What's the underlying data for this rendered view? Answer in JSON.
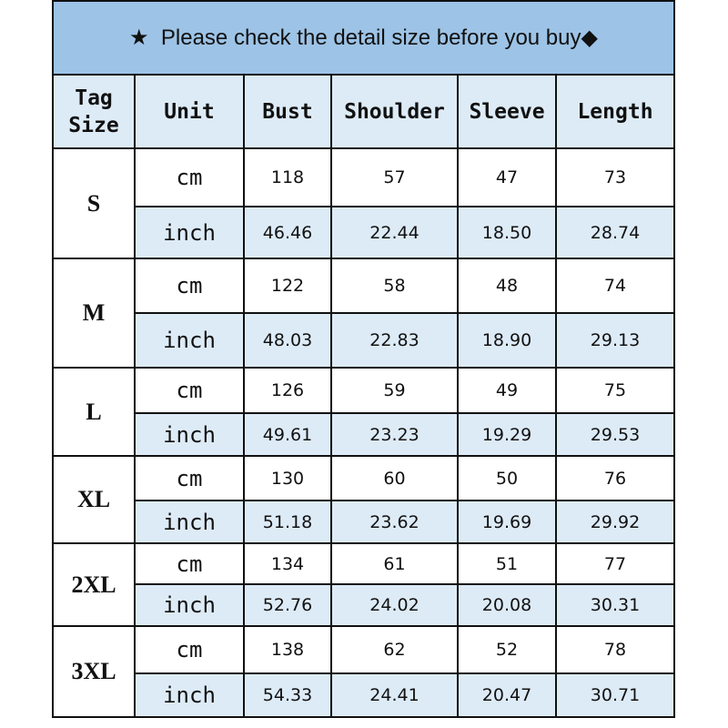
{
  "title": {
    "icon_left": "★",
    "text": "Please check the detail size before you buy",
    "icon_right": "◆"
  },
  "headers": {
    "tag_size_1": "Tag",
    "tag_size_2": "Size",
    "unit": "Unit",
    "bust": "Bust",
    "shoulder": "Shoulder",
    "sleeve": "Sleeve",
    "length": "Length"
  },
  "colors": {
    "title_bg": "#9dc3e6",
    "header_bg": "#ddebf7",
    "border": "#111111"
  },
  "sizes": [
    {
      "size": "S",
      "cm": {
        "unit": "cm",
        "bust": "118",
        "shoulder": "57",
        "sleeve": "47",
        "length": "73"
      },
      "inch": {
        "unit": "inch",
        "bust": "46.46",
        "shoulder": "22.44",
        "sleeve": "18.50",
        "length": "28.74"
      }
    },
    {
      "size": "M",
      "cm": {
        "unit": "cm",
        "bust": "122",
        "shoulder": "58",
        "sleeve": "48",
        "length": "74"
      },
      "inch": {
        "unit": "inch",
        "bust": "48.03",
        "shoulder": "22.83",
        "sleeve": "18.90",
        "length": "29.13"
      }
    },
    {
      "size": "L",
      "cm": {
        "unit": "cm",
        "bust": "126",
        "shoulder": "59",
        "sleeve": "49",
        "length": "75"
      },
      "inch": {
        "unit": "inch",
        "bust": "49.61",
        "shoulder": "23.23",
        "sleeve": "19.29",
        "length": "29.53"
      }
    },
    {
      "size": "XL",
      "cm": {
        "unit": "cm",
        "bust": "130",
        "shoulder": "60",
        "sleeve": "50",
        "length": "76"
      },
      "inch": {
        "unit": "inch",
        "bust": "51.18",
        "shoulder": "23.62",
        "sleeve": "19.69",
        "length": "29.92"
      }
    },
    {
      "size": "2XL",
      "cm": {
        "unit": "cm",
        "bust": "134",
        "shoulder": "61",
        "sleeve": "51",
        "length": "77"
      },
      "inch": {
        "unit": "inch",
        "bust": "52.76",
        "shoulder": "24.02",
        "sleeve": "20.08",
        "length": "30.31"
      }
    },
    {
      "size": "3XL",
      "cm": {
        "unit": "cm",
        "bust": "138",
        "shoulder": "62",
        "sleeve": "52",
        "length": "78"
      },
      "inch": {
        "unit": "inch",
        "bust": "54.33",
        "shoulder": "24.41",
        "sleeve": "20.47",
        "length": "30.71"
      }
    }
  ]
}
